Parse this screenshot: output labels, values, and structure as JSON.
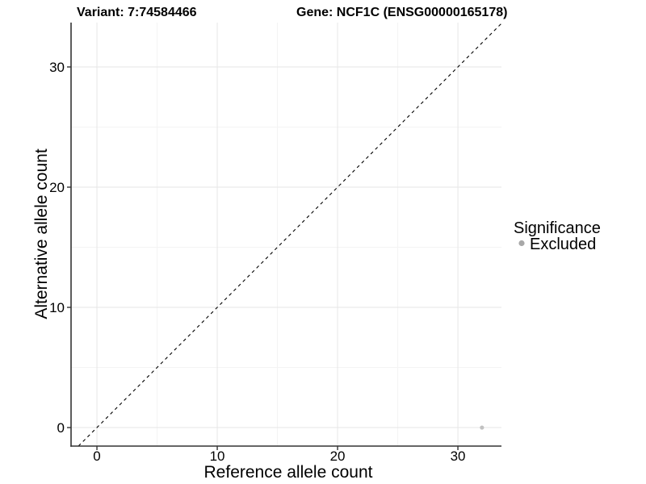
{
  "figure": {
    "title_variant": "Variant: 7:74584466",
    "title_gene": "Gene: NCF1C (ENSG00000165178)"
  },
  "chart_data": {
    "type": "scatter",
    "title_left": "Variant: 7:74584466",
    "title_right": "Gene: NCF1C (ENSG00000165178)",
    "xlabel": "Reference allele count",
    "ylabel": "Alternative allele count",
    "xlim": [
      -2.15,
      33.62
    ],
    "ylim": [
      -1.54,
      33.69
    ],
    "xticks": [
      0,
      10,
      20,
      30
    ],
    "yticks": [
      0,
      10,
      20,
      30
    ],
    "minor_xticks": [
      5,
      15,
      25
    ],
    "minor_yticks": [
      5,
      15,
      25
    ],
    "grid": "major_and_minor",
    "identity_line": {
      "equation": "y = x",
      "style": "dashed",
      "color": "#000000"
    },
    "series": [
      {
        "name": "Excluded",
        "color": "#c1c1c1",
        "points": [
          {
            "x": 32,
            "y": 0
          }
        ]
      }
    ],
    "legend": {
      "title": "Significance",
      "position": "right",
      "entries": [
        {
          "label": "Excluded",
          "color": "#a8a8a8"
        }
      ]
    },
    "colors": {
      "grid_major": "#e6e6e6",
      "grid_minor": "#f4f4f4",
      "axis_line": "#333333",
      "tick_mark": "#333333",
      "tick_text": "#303030"
    }
  }
}
